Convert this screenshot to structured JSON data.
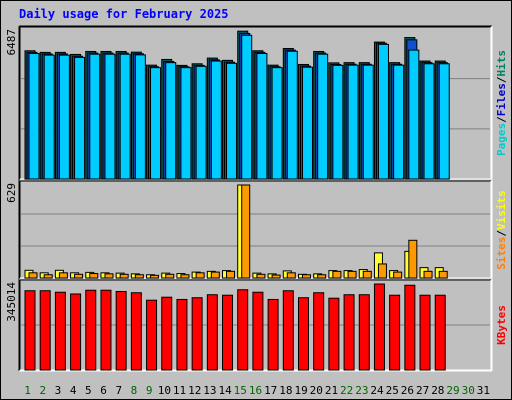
{
  "title": "Daily usage for February 2025",
  "chart_data": [
    {
      "type": "bar",
      "panel": "hits-files-pages",
      "categories": [
        "1",
        "2",
        "3",
        "4",
        "5",
        "6",
        "7",
        "8",
        "9",
        "10",
        "11",
        "12",
        "13",
        "14",
        "15",
        "16",
        "17",
        "18",
        "19",
        "20",
        "21",
        "22",
        "23",
        "24",
        "25",
        "26",
        "27",
        "28"
      ],
      "ymax_label": "6487",
      "ylim": [
        0,
        6487
      ],
      "right_labels": [
        {
          "text": "Pages",
          "color": "#00cccc"
        },
        {
          "text": "/",
          "color": "#000000"
        },
        {
          "text": "Files",
          "color": "#0000cc"
        },
        {
          "text": "/",
          "color": "#000000"
        },
        {
          "text": "Hits",
          "color": "#008060"
        }
      ],
      "series": [
        {
          "name": "Hits",
          "color": "#0a5b5b",
          "values": [
            5620,
            5550,
            5550,
            5460,
            5590,
            5590,
            5590,
            5560,
            4990,
            5240,
            4980,
            5050,
            5300,
            5200,
            6480,
            5620,
            4990,
            5720,
            5020,
            5590,
            5090,
            5100,
            5100,
            6000,
            5100,
            6200,
            5170,
            5170
          ]
        },
        {
          "name": "Files",
          "color": "#1050d0",
          "values": [
            5550,
            5480,
            5480,
            5380,
            5520,
            5520,
            5520,
            5490,
            4920,
            5150,
            4920,
            4980,
            5220,
            5120,
            6380,
            5550,
            4920,
            5650,
            4950,
            5520,
            5020,
            5030,
            5030,
            5950,
            5030,
            6100,
            5100,
            5100
          ]
        },
        {
          "name": "Pages",
          "color": "#00ccff",
          "values": [
            5500,
            5430,
            5430,
            5330,
            5470,
            5470,
            5470,
            5440,
            4880,
            5100,
            4880,
            4940,
            5170,
            5070,
            6300,
            5500,
            4880,
            5600,
            4900,
            5470,
            4980,
            4990,
            4990,
            5900,
            4990,
            5650,
            5050,
            5050
          ]
        }
      ]
    },
    {
      "type": "bar",
      "panel": "visits-sites",
      "categories": [
        "1",
        "2",
        "3",
        "4",
        "5",
        "6",
        "7",
        "8",
        "9",
        "10",
        "11",
        "12",
        "13",
        "14",
        "15",
        "16",
        "17",
        "18",
        "19",
        "20",
        "21",
        "22",
        "23",
        "24",
        "25",
        "26",
        "27",
        "28"
      ],
      "ymax_label": "629",
      "ylim": [
        0,
        629
      ],
      "right_labels": [
        {
          "text": "Sites",
          "color": "#ff8000"
        },
        {
          "text": "/",
          "color": "#000000"
        },
        {
          "text": "Visits",
          "color": "#ffff00"
        }
      ],
      "series": [
        {
          "name": "Visits",
          "color": "#ffff33",
          "values": [
            52,
            35,
            52,
            35,
            38,
            35,
            33,
            28,
            22,
            33,
            30,
            40,
            45,
            50,
            629,
            33,
            28,
            48,
            25,
            28,
            50,
            50,
            57,
            170,
            50,
            180,
            70,
            70
          ]
        },
        {
          "name": "Sites",
          "color": "#ff9900",
          "values": [
            35,
            22,
            35,
            25,
            30,
            28,
            25,
            22,
            18,
            25,
            22,
            35,
            40,
            45,
            629,
            25,
            20,
            35,
            22,
            22,
            45,
            45,
            45,
            95,
            40,
            255,
            45,
            45
          ]
        }
      ]
    },
    {
      "type": "bar",
      "panel": "kbytes",
      "categories": [
        "1",
        "2",
        "3",
        "4",
        "5",
        "6",
        "7",
        "8",
        "9",
        "10",
        "11",
        "12",
        "13",
        "14",
        "15",
        "16",
        "17",
        "18",
        "19",
        "20",
        "21",
        "22",
        "23",
        "24",
        "25",
        "26",
        "27",
        "28"
      ],
      "ymax_label": "345014",
      "ylim": [
        0,
        345014
      ],
      "right_labels": [
        {
          "text": "KBytes",
          "color": "#ff0000"
        }
      ],
      "series": [
        {
          "name": "KBytes",
          "color": "#ff0000",
          "values": [
            318000,
            318000,
            312000,
            305000,
            320000,
            320000,
            315000,
            310000,
            280000,
            292000,
            283000,
            290000,
            302000,
            300000,
            322000,
            312000,
            283000,
            318000,
            290000,
            310000,
            288000,
            302000,
            302000,
            345014,
            300000,
            340000,
            300000,
            300000
          ]
        }
      ]
    }
  ],
  "xaxis": {
    "labels": [
      {
        "text": "1",
        "color": "#006600"
      },
      {
        "text": "2",
        "color": "#006600"
      },
      {
        "text": "3",
        "color": "#000000"
      },
      {
        "text": "4",
        "color": "#000000"
      },
      {
        "text": "5",
        "color": "#000000"
      },
      {
        "text": "6",
        "color": "#000000"
      },
      {
        "text": "7",
        "color": "#000000"
      },
      {
        "text": "8",
        "color": "#006600"
      },
      {
        "text": "9",
        "color": "#006600"
      },
      {
        "text": "10",
        "color": "#000000"
      },
      {
        "text": "11",
        "color": "#000000"
      },
      {
        "text": "12",
        "color": "#000000"
      },
      {
        "text": "13",
        "color": "#000000"
      },
      {
        "text": "14",
        "color": "#000000"
      },
      {
        "text": "15",
        "color": "#006600"
      },
      {
        "text": "16",
        "color": "#006600"
      },
      {
        "text": "17",
        "color": "#000000"
      },
      {
        "text": "18",
        "color": "#000000"
      },
      {
        "text": "19",
        "color": "#000000"
      },
      {
        "text": "20",
        "color": "#000000"
      },
      {
        "text": "21",
        "color": "#000000"
      },
      {
        "text": "22",
        "color": "#006600"
      },
      {
        "text": "23",
        "color": "#006600"
      },
      {
        "text": "24",
        "color": "#000000"
      },
      {
        "text": "25",
        "color": "#000000"
      },
      {
        "text": "26",
        "color": "#000000"
      },
      {
        "text": "27",
        "color": "#000000"
      },
      {
        "text": "28",
        "color": "#000000"
      },
      {
        "text": "29",
        "color": "#006600"
      },
      {
        "text": "30",
        "color": "#006600"
      },
      {
        "text": "31",
        "color": "#000000"
      }
    ]
  },
  "colors": {
    "background": "#c0c0c0",
    "title": "#0000ff",
    "gridline": "#808080"
  }
}
